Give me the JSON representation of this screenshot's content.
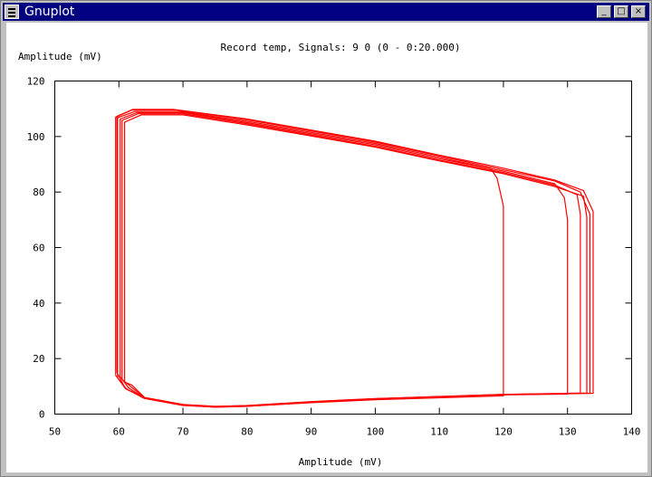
{
  "window": {
    "title": "Gnuplot",
    "buttons": {
      "minimize": "_",
      "maximize": "□",
      "close": "×"
    }
  },
  "chart_data": {
    "type": "line",
    "title": "Record temp, Signals: 9 0  (0 - 0:20.000)",
    "xlabel": "Amplitude (mV)",
    "ylabel": "Amplitude (mV)",
    "xlim": [
      50,
      140
    ],
    "ylim": [
      0,
      120
    ],
    "xticks": [
      50,
      60,
      70,
      80,
      90,
      100,
      110,
      120,
      130,
      140
    ],
    "yticks": [
      0,
      20,
      40,
      60,
      80,
      100,
      120
    ],
    "grid": false,
    "legend": "none",
    "color": "#ff0000",
    "series": [
      {
        "values": [
          [
            59.5,
            14
          ],
          [
            59.5,
            107
          ],
          [
            62,
            109.5
          ],
          [
            69,
            109.5
          ],
          [
            80,
            106
          ],
          [
            100,
            98
          ],
          [
            110,
            93
          ],
          [
            118,
            89
          ],
          [
            128,
            84
          ],
          [
            132,
            80
          ],
          [
            133.5,
            72
          ],
          [
            133.5,
            7.5
          ],
          [
            120,
            7
          ],
          [
            100,
            5.5
          ],
          [
            90,
            4.3
          ],
          [
            80,
            2.9
          ],
          [
            75,
            2.6
          ],
          [
            70,
            3.3
          ],
          [
            64,
            5.8
          ],
          [
            61,
            9.3
          ],
          [
            59.5,
            14
          ]
        ]
      },
      {
        "values": [
          [
            59.8,
            13
          ],
          [
            59.8,
            106.8
          ],
          [
            62.5,
            109
          ],
          [
            69.5,
            109
          ],
          [
            80,
            105.5
          ],
          [
            100,
            97.5
          ],
          [
            110,
            92.5
          ],
          [
            118,
            88.5
          ],
          [
            119,
            85
          ],
          [
            120,
            75
          ],
          [
            120,
            6.6
          ],
          [
            100,
            5.2
          ],
          [
            90,
            4.1
          ],
          [
            80,
            2.8
          ],
          [
            75,
            2.5
          ],
          [
            70,
            3.1
          ],
          [
            64,
            5.6
          ],
          [
            61.2,
            9
          ],
          [
            59.8,
            13
          ]
        ]
      },
      {
        "values": [
          [
            60.2,
            13.5
          ],
          [
            60.2,
            106.3
          ],
          [
            62.8,
            108.6
          ],
          [
            70,
            108.6
          ],
          [
            80,
            105
          ],
          [
            100,
            97
          ],
          [
            110,
            92
          ],
          [
            120,
            87.5
          ],
          [
            128,
            83
          ],
          [
            129.5,
            78
          ],
          [
            130,
            70
          ],
          [
            130,
            7.2
          ],
          [
            120,
            6.9
          ],
          [
            100,
            5.4
          ],
          [
            90,
            4.2
          ],
          [
            80,
            2.8
          ],
          [
            75,
            2.5
          ],
          [
            70,
            3.2
          ],
          [
            64,
            5.7
          ],
          [
            61.5,
            9.5
          ],
          [
            60.2,
            13.5
          ]
        ]
      },
      {
        "values": [
          [
            60.5,
            12.5
          ],
          [
            60.5,
            105.8
          ],
          [
            63,
            108.2
          ],
          [
            70,
            108.2
          ],
          [
            80,
            104.6
          ],
          [
            100,
            96.5
          ],
          [
            110,
            91.5
          ],
          [
            120,
            87
          ],
          [
            128,
            82.5
          ],
          [
            131.5,
            79
          ],
          [
            132,
            72
          ],
          [
            132,
            7.4
          ],
          [
            120,
            7
          ],
          [
            100,
            5.5
          ],
          [
            90,
            4.4
          ],
          [
            80,
            3
          ],
          [
            75,
            2.7
          ],
          [
            70,
            3.4
          ],
          [
            64,
            5.9
          ],
          [
            61.8,
            10
          ],
          [
            60.5,
            12.5
          ]
        ]
      },
      {
        "values": [
          [
            60.9,
            11.5
          ],
          [
            60.9,
            105.2
          ],
          [
            63.5,
            107.8
          ],
          [
            70,
            107.8
          ],
          [
            80,
            104.2
          ],
          [
            100,
            96.2
          ],
          [
            110,
            91.2
          ],
          [
            120,
            86.6
          ],
          [
            128,
            82
          ],
          [
            132.5,
            78.5
          ],
          [
            133,
            71
          ],
          [
            133,
            7.6
          ],
          [
            120,
            7.1
          ],
          [
            100,
            5.6
          ],
          [
            90,
            4.5
          ],
          [
            80,
            3.1
          ],
          [
            75,
            2.8
          ],
          [
            70,
            3.5
          ],
          [
            64,
            6
          ],
          [
            62,
            10.5
          ],
          [
            60.9,
            11.5
          ]
        ]
      },
      {
        "values": [
          [
            59.7,
            15
          ],
          [
            59.7,
            107.3
          ],
          [
            62.2,
            109.8
          ],
          [
            68.5,
            109.8
          ],
          [
            80,
            106.3
          ],
          [
            100,
            98.3
          ],
          [
            110,
            93.3
          ],
          [
            120,
            88.6
          ],
          [
            128,
            84.3
          ],
          [
            132.5,
            80.5
          ],
          [
            134,
            73
          ],
          [
            134,
            7.5
          ],
          [
            120,
            7.1
          ],
          [
            100,
            5.5
          ],
          [
            90,
            4.3
          ],
          [
            80,
            3
          ],
          [
            75,
            2.6
          ],
          [
            70,
            3.3
          ],
          [
            64,
            5.8
          ],
          [
            61,
            9.2
          ],
          [
            59.7,
            15
          ]
        ]
      }
    ]
  }
}
